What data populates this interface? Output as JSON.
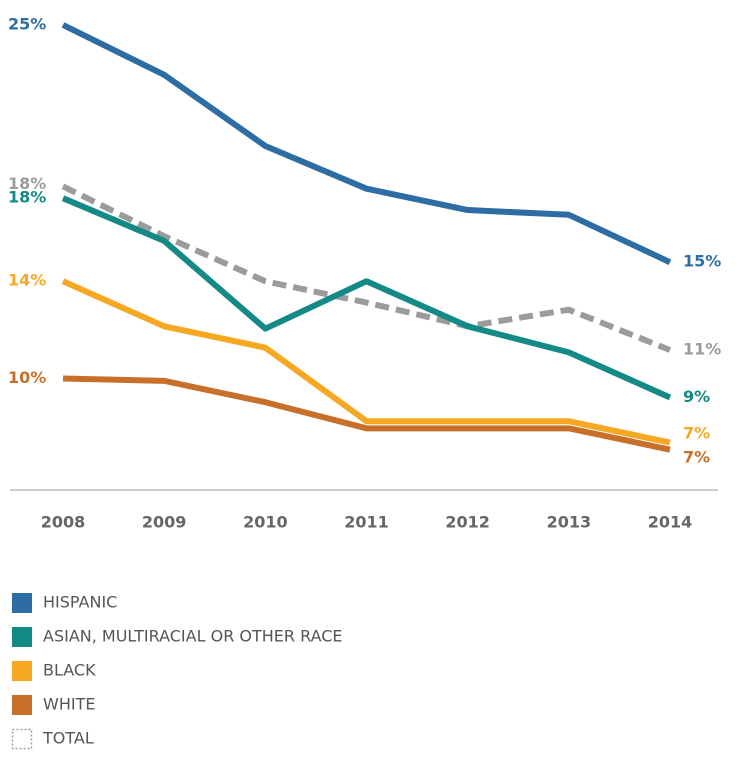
{
  "chart_data": {
    "type": "line",
    "categories": [
      "2008",
      "2009",
      "2010",
      "2011",
      "2012",
      "2013",
      "2014"
    ],
    "ylim": [
      5.4,
      25.4
    ],
    "series": [
      {
        "name": "HISPANIC",
        "color": "#2e6da4",
        "values": [
          25,
          22.9,
          19.9,
          18.1,
          17.2,
          17.0,
          15.0
        ],
        "value_labels": [
          "25%",
          null,
          null,
          null,
          null,
          null,
          "15%"
        ]
      },
      {
        "name": "ASIAN, MULTIRACIAL OR OTHER RACE",
        "color": "#148a87",
        "values": [
          17.7,
          15.9,
          12.2,
          14.2,
          12.3,
          11.2,
          9.3
        ],
        "value_labels": [
          "18%",
          null,
          null,
          null,
          null,
          null,
          "9%"
        ]
      },
      {
        "name": "BLACK",
        "color": "#f7a823",
        "values": [
          14.2,
          12.3,
          11.4,
          8.3,
          8.3,
          8.3,
          7.4
        ],
        "value_labels": [
          "14%",
          null,
          null,
          null,
          null,
          null,
          "7%"
        ]
      },
      {
        "name": "WHITE",
        "color": "#c8702a",
        "values": [
          10.1,
          10.0,
          9.1,
          8.0,
          8.0,
          8.0,
          7.1
        ],
        "value_labels": [
          "10%",
          null,
          null,
          null,
          null,
          null,
          "7%"
        ]
      },
      {
        "name": "TOTAL",
        "color": "#9b9b9b",
        "dashed": true,
        "values": [
          18.2,
          16.1,
          14.2,
          13.3,
          12.3,
          13.0,
          11.3
        ],
        "value_labels": [
          "18%",
          null,
          null,
          null,
          null,
          null,
          "11%"
        ]
      }
    ]
  }
}
